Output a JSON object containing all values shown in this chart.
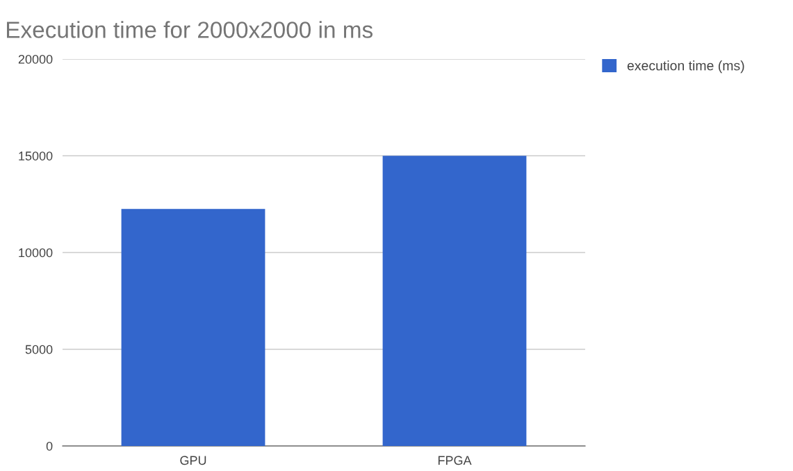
{
  "chart_data": {
    "type": "bar",
    "title": "Execution time for 2000x2000 in ms",
    "categories": [
      "GPU",
      "FPGA"
    ],
    "series": [
      {
        "name": "execution time (ms)",
        "color": "#3366cc",
        "values": [
          12250,
          15000
        ]
      }
    ],
    "ylim": [
      0,
      20000
    ],
    "yticks": [
      0,
      5000,
      10000,
      15000,
      20000
    ],
    "grid": "y",
    "legend": "top right"
  }
}
